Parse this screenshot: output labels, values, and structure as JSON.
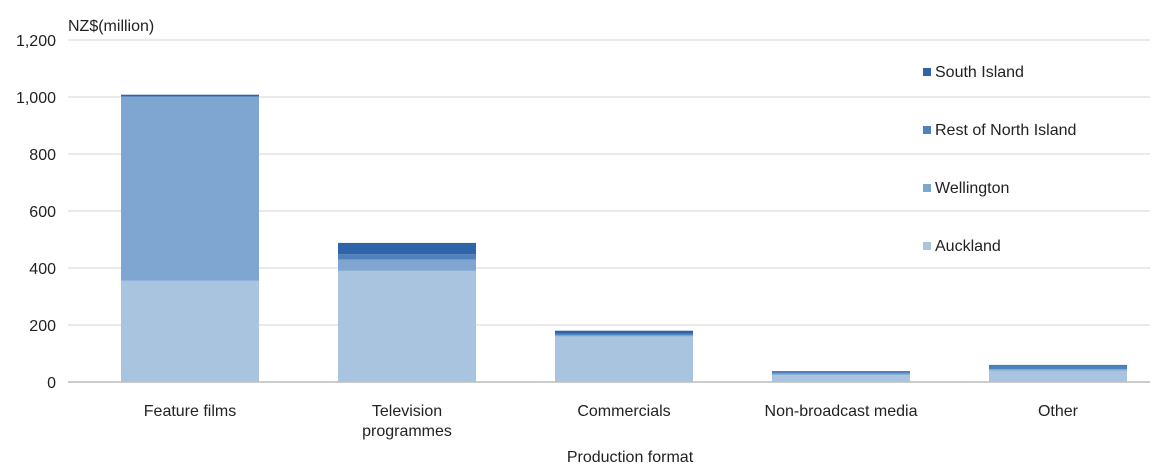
{
  "chart_data": {
    "type": "bar",
    "stacked": true,
    "ylabel": "NZ$(million)",
    "xlabel": "Production format",
    "ylim": [
      0,
      1200
    ],
    "yticks": [
      0,
      200,
      400,
      600,
      800,
      1000,
      1200
    ],
    "ytick_labels": [
      "0",
      "200",
      "400",
      "600",
      "800",
      "1,000",
      "1,200"
    ],
    "grid": true,
    "legend_position": "right",
    "categories": [
      [
        "Feature films"
      ],
      [
        "Television",
        "programmes"
      ],
      [
        "Commercials"
      ],
      [
        "Non-broadcast media"
      ],
      [
        "Other"
      ]
    ],
    "series": [
      {
        "name": "Auckland",
        "color": "#a9c4de",
        "values": [
          355,
          390,
          160,
          25,
          40
        ]
      },
      {
        "name": "Wellington",
        "color": "#7fa6d0",
        "values": [
          645,
          40,
          5,
          5,
          5
        ]
      },
      {
        "name": "Rest of North Island",
        "color": "#4f81bd",
        "values": [
          3,
          18,
          5,
          5,
          12
        ]
      },
      {
        "name": "South Island",
        "color": "#2e64a8",
        "values": [
          5,
          40,
          10,
          3,
          3
        ]
      }
    ],
    "legend_order": [
      "South Island",
      "Rest of North Island",
      "Wellington",
      "Auckland"
    ]
  }
}
